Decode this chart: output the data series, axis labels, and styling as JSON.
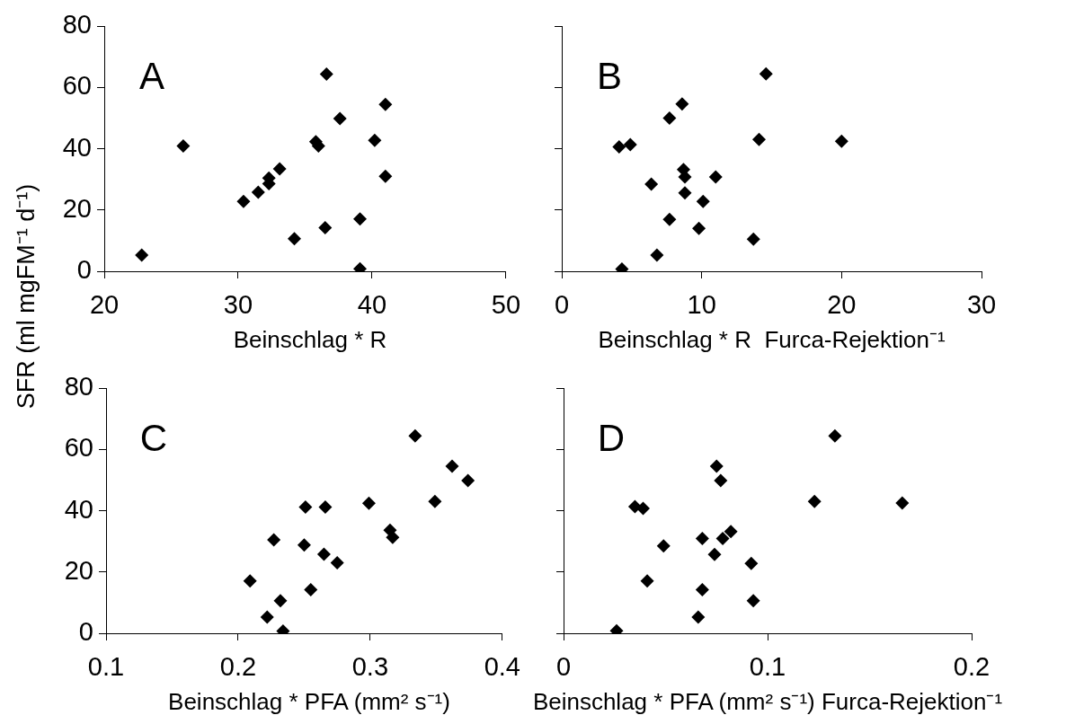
{
  "chart_data": [
    {
      "type": "scatter",
      "ylabel": "SFR (ml mgFM⁻¹ d⁻¹)",
      "xlabel": "Beinschlag * R",
      "annotations": [
        "A"
      ],
      "color": "#000000",
      "marker": "diamond",
      "x": [
        22.8,
        25.9,
        30.4,
        31.5,
        32.3,
        32.3,
        33.1,
        34.2,
        35.8,
        36.0,
        36.5,
        36.6,
        37.6,
        39.1,
        39.1,
        40.2,
        41.0,
        41.0
      ],
      "values": [
        5.3,
        40.9,
        22.8,
        25.8,
        30.4,
        28.6,
        33.4,
        10.6,
        42.3,
        40.9,
        14.2,
        64.3,
        49.8,
        0.8,
        17.1,
        42.7,
        54.4,
        31.0
      ],
      "xlim": [
        20,
        50
      ],
      "xticks": [
        20,
        30,
        40,
        50
      ],
      "ylim": [
        0,
        80
      ],
      "yticks": [
        0,
        20,
        40,
        60,
        80
      ]
    },
    {
      "type": "scatter",
      "xlabel": "Beinschlag * R  Furca-Rejektion⁻¹",
      "annotations": [
        "B"
      ],
      "color": "#000000",
      "marker": "diamond",
      "tick_labels": "x",
      "x": [
        4.3,
        4.1,
        4.9,
        6.8,
        6.4,
        7.7,
        7.7,
        8.6,
        8.7,
        8.8,
        8.8,
        9.8,
        10.1,
        11.0,
        13.7,
        14.1,
        14.6,
        20.0
      ],
      "values": [
        0.7,
        40.6,
        41.3,
        5.3,
        28.4,
        50.0,
        16.9,
        54.6,
        33.2,
        30.8,
        25.6,
        14.0,
        22.8,
        30.8,
        10.5,
        43.0,
        64.4,
        42.4
      ],
      "xlim": [
        0,
        30
      ],
      "xticks": [
        0,
        10,
        20,
        30
      ],
      "ylim": [
        0,
        80
      ],
      "yticks": [
        0,
        20,
        40,
        60,
        80
      ]
    },
    {
      "type": "scatter",
      "xlabel": "Beinschlag * PFA (mm² s⁻¹)",
      "annotations": [
        "C"
      ],
      "color": "#000000",
      "marker": "diamond",
      "x": [
        0.334,
        0.362,
        0.374,
        0.349,
        0.299,
        0.251,
        0.266,
        0.315,
        0.317,
        0.227,
        0.25,
        0.265,
        0.275,
        0.209,
        0.255,
        0.232,
        0.222,
        0.234
      ],
      "values": [
        64.4,
        54.5,
        49.8,
        43.0,
        42.4,
        41.2,
        41.2,
        33.6,
        31.3,
        30.5,
        28.8,
        25.8,
        23.0,
        17.1,
        14.2,
        10.6,
        5.3,
        0.7
      ],
      "xlim": [
        0.1,
        0.4
      ],
      "xticks": [
        0.1,
        0.2,
        0.3,
        0.4
      ],
      "ylim": [
        0,
        80
      ],
      "yticks": [
        0,
        20,
        40,
        60,
        80
      ]
    },
    {
      "type": "scatter",
      "xlabel": "Beinschlag * PFA (mm² s⁻¹) Furca-Rejektion⁻¹",
      "annotations": [
        "D"
      ],
      "color": "#000000",
      "marker": "diamond",
      "tick_labels": "x",
      "x": [
        0.133,
        0.075,
        0.077,
        0.123,
        0.166,
        0.035,
        0.039,
        0.082,
        0.068,
        0.078,
        0.049,
        0.074,
        0.092,
        0.041,
        0.068,
        0.093,
        0.066,
        0.026
      ],
      "values": [
        64.4,
        54.5,
        49.8,
        43.0,
        42.5,
        41.3,
        40.7,
        33.2,
        30.9,
        30.9,
        28.5,
        25.7,
        22.8,
        17.1,
        14.2,
        10.6,
        5.3,
        0.8
      ],
      "xlim": [
        0,
        0.2
      ],
      "xticks": [
        0,
        0.1,
        0.2
      ],
      "ylim": [
        0,
        80
      ],
      "yticks": [
        0,
        20,
        40,
        60,
        80
      ]
    }
  ]
}
